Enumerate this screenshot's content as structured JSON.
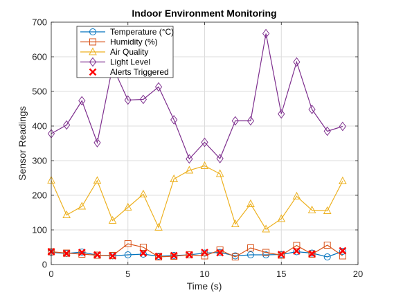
{
  "chart_data": {
    "type": "line",
    "title": "Indoor Environment Monitoring",
    "xlabel": "Time (s)",
    "ylabel": "Sensor Readings",
    "xlim": [
      0,
      20
    ],
    "ylim": [
      0,
      700
    ],
    "xticks": [
      0,
      5,
      10,
      15,
      20
    ],
    "yticks": [
      0,
      100,
      200,
      300,
      400,
      500,
      600,
      700
    ],
    "grid": true,
    "legend_position": "top-left",
    "x": [
      0,
      1,
      2,
      3,
      4,
      5,
      6,
      7,
      8,
      9,
      10,
      11,
      12,
      13,
      14,
      15,
      16,
      17,
      18,
      19
    ],
    "series": [
      {
        "name": "Temperature (°C)",
        "color": "#0072BD",
        "marker": "circle",
        "values": [
          35,
          32,
          36,
          27,
          25,
          28,
          30,
          24,
          26,
          28,
          33,
          35,
          25,
          28,
          28,
          29,
          37,
          33,
          22,
          38
        ]
      },
      {
        "name": "Humidity (%)",
        "color": "#D95319",
        "marker": "square",
        "values": [
          37,
          33,
          30,
          27,
          26,
          60,
          50,
          22,
          24,
          28,
          25,
          42,
          22,
          48,
          35,
          27,
          55,
          30,
          56,
          25
        ]
      },
      {
        "name": "Air Quality",
        "color": "#EDB120",
        "marker": "triangle",
        "values": [
          243,
          143,
          168,
          242,
          127,
          165,
          203,
          107,
          247,
          272,
          285,
          262,
          117,
          175,
          102,
          132,
          197,
          157,
          155,
          241
        ]
      },
      {
        "name": "Light Level",
        "color": "#7E2F8E",
        "marker": "diamond",
        "values": [
          378,
          403,
          473,
          352,
          572,
          475,
          477,
          513,
          418,
          305,
          353,
          306,
          415,
          415,
          667,
          435,
          585,
          448,
          385,
          399
        ]
      }
    ],
    "alerts": {
      "name": "Alerts Triggered",
      "color": "#FF0000",
      "marker": "x",
      "x": [
        0,
        1,
        2,
        3,
        4,
        6,
        7,
        8,
        9,
        10,
        11,
        15,
        16,
        17,
        19
      ],
      "y": [
        37,
        32,
        35,
        28,
        25,
        33,
        24,
        26,
        28,
        35,
        34,
        29,
        39,
        31,
        40
      ]
    }
  }
}
